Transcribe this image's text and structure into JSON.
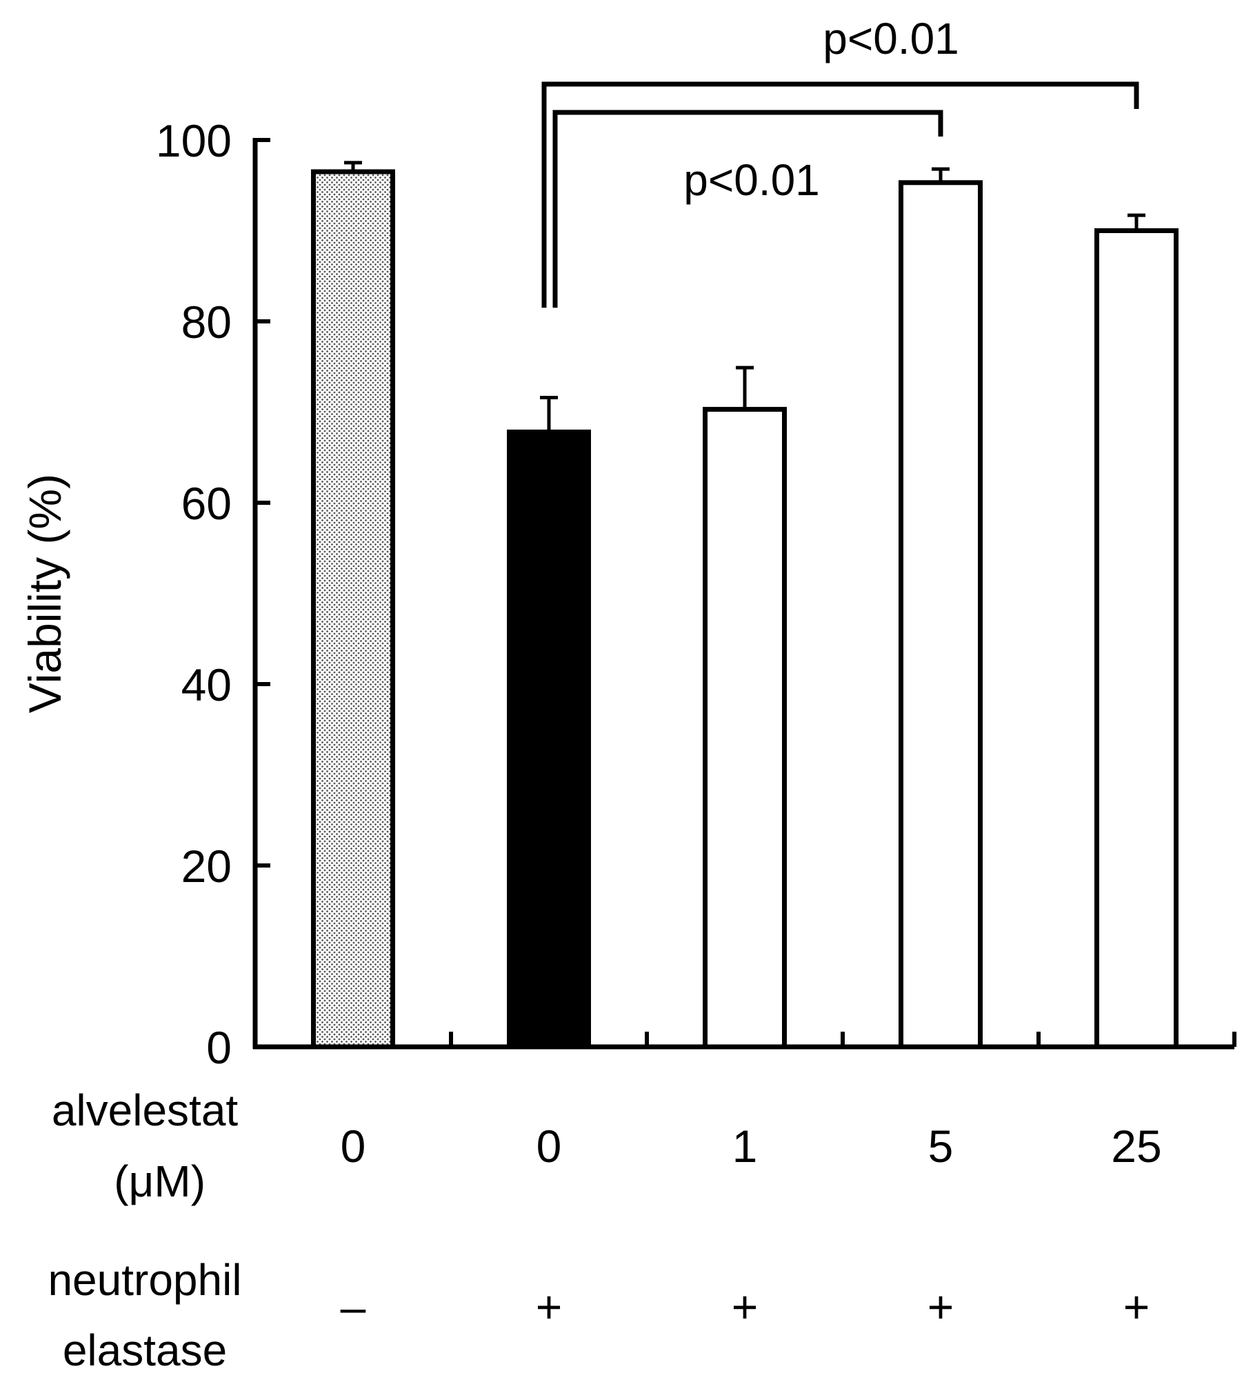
{
  "chart_data": {
    "type": "bar",
    "title": "",
    "ylabel": "Viability (%)",
    "xlabel": "",
    "ylim": [
      0,
      100
    ],
    "yticks": [
      0,
      20,
      40,
      60,
      80,
      100
    ],
    "categories": [
      "0",
      "0",
      "1",
      "5",
      "25"
    ],
    "values": [
      96.5,
      67.8,
      70.3,
      95.3,
      90.0
    ],
    "errors": [
      1.0,
      3.8,
      4.6,
      1.5,
      1.7
    ],
    "bar_styles": [
      "dotted",
      "solid",
      "open",
      "open",
      "open"
    ],
    "rows": [
      {
        "label_lines": [
          "alvelestat",
          "(μM)"
        ],
        "values": [
          "0",
          "0",
          "1",
          "5",
          "25"
        ]
      },
      {
        "label_lines": [
          "neutrophil",
          "elastase"
        ],
        "values": [
          "–",
          "+",
          "+",
          "+",
          "+"
        ]
      }
    ],
    "significance": [
      {
        "from": 1,
        "to": 4,
        "label": "p<0.01"
      },
      {
        "from": 1,
        "to": 3,
        "label": "p<0.01"
      }
    ]
  }
}
